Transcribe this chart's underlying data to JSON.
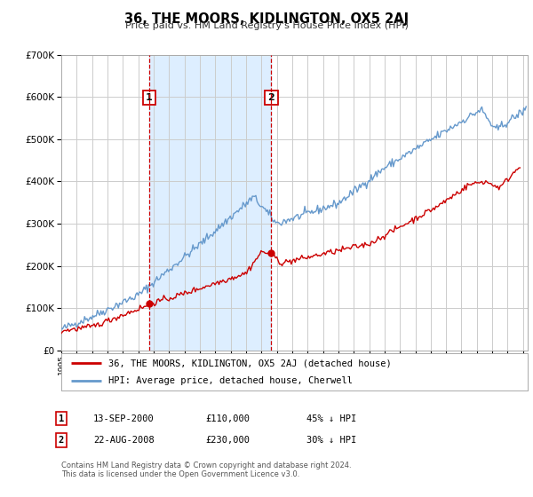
{
  "title": "36, THE MOORS, KIDLINGTON, OX5 2AJ",
  "subtitle": "Price paid vs. HM Land Registry's House Price Index (HPI)",
  "legend_line1": "36, THE MOORS, KIDLINGTON, OX5 2AJ (detached house)",
  "legend_line2": "HPI: Average price, detached house, Cherwell",
  "transaction1_date": "13-SEP-2000",
  "transaction1_price": "£110,000",
  "transaction1_hpi": "45% ↓ HPI",
  "transaction1_x": 2000.71,
  "transaction1_y_red": 110000,
  "transaction2_date": "22-AUG-2008",
  "transaction2_price": "£230,000",
  "transaction2_hpi": "30% ↓ HPI",
  "transaction2_x": 2008.64,
  "transaction2_y_red": 230000,
  "footer_line1": "Contains HM Land Registry data © Crown copyright and database right 2024.",
  "footer_line2": "This data is licensed under the Open Government Licence v3.0.",
  "ylim": [
    0,
    700000
  ],
  "xlim_start": 1995.0,
  "xlim_end": 2025.3,
  "shade_x_start": 2000.71,
  "shade_x_end": 2008.64,
  "red_color": "#cc0000",
  "blue_color": "#6699cc",
  "shade_color": "#ddeeff",
  "grid_color": "#cccccc",
  "background_color": "#ffffff"
}
